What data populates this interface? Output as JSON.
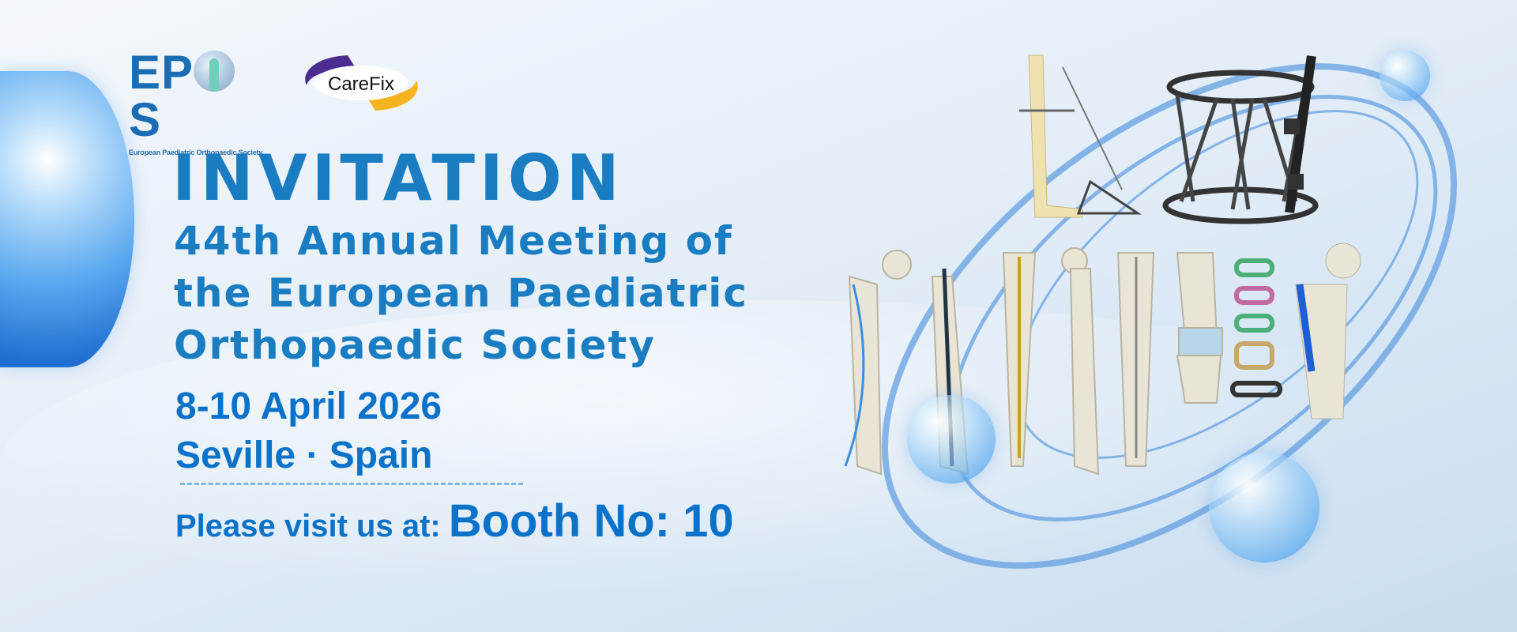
{
  "logos": {
    "epos": {
      "text": "EPOS",
      "subtitle": "European Paediatric Orthopaedic Society"
    },
    "carefix": {
      "text": "CareFix",
      "colors": {
        "purple": "#4b2c91",
        "yellow": "#f5b41e"
      }
    }
  },
  "headline": {
    "title": "INVITATION",
    "lines": [
      "44th Annual Meeting of",
      "the European Paediatric",
      "Orthopaedic Society"
    ]
  },
  "event": {
    "dates": "8-10 April 2026",
    "location": "Seville · Spain"
  },
  "booth": {
    "label": "Please visit us at:",
    "value": "Booth No: 10"
  },
  "colors": {
    "primary": "#1a7dc2",
    "accent": "#0b72c9"
  },
  "images": [
    "external-fixator-foot-icon",
    "hexapod-ring-fixator-icon",
    "monolateral-fixator-icon",
    "femur-elastic-nails-icon",
    "femur-nail-icon",
    "tibia-nail-icon",
    "femur-retrograde-nail-icon",
    "tibia-intramedullary-nail-icon",
    "knee-guided-growth-icon",
    "eight-plates-icon",
    "proximal-femur-plate-icon"
  ]
}
